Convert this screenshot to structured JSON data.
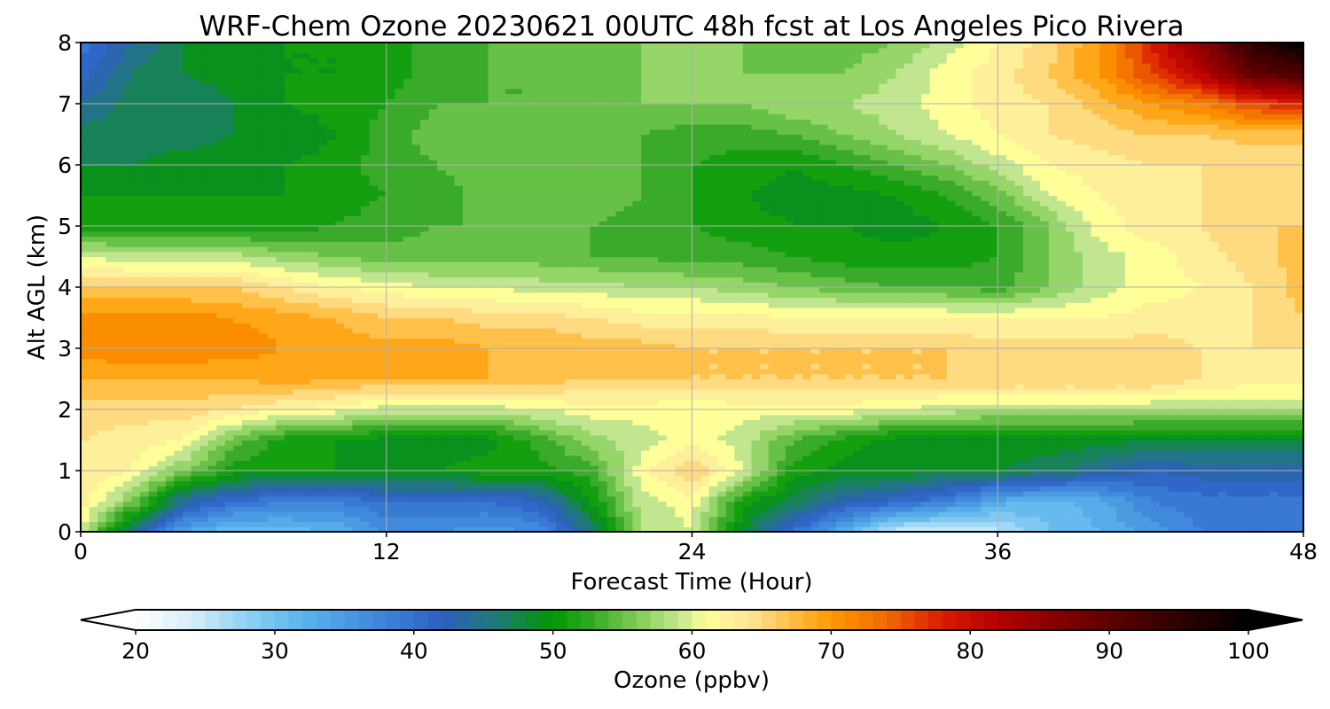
{
  "chart_data": {
    "type": "heatmap",
    "title": "WRF-Chem Ozone  20230621 00UTC 48h fcst at Los Angeles Pico Rivera",
    "xlabel": "Forecast Time (Hour)",
    "ylabel": "Alt AGL (km)",
    "xlim": [
      0,
      48
    ],
    "ylim": [
      0,
      8
    ],
    "xticks": [
      0,
      12,
      24,
      36,
      48
    ],
    "yticks": [
      0,
      1,
      2,
      3,
      4,
      5,
      6,
      7,
      8
    ],
    "xtick_labels": [
      "0",
      "12",
      "24",
      "36",
      "48"
    ],
    "ytick_labels": [
      "0",
      "1",
      "2",
      "3",
      "4",
      "5",
      "6",
      "7",
      "8"
    ],
    "grid": true,
    "x": [
      0,
      2,
      4,
      6,
      8,
      10,
      12,
      14,
      16,
      18,
      20,
      22,
      24,
      26,
      28,
      30,
      32,
      34,
      36,
      38,
      40,
      42,
      44,
      46,
      48
    ],
    "y": [
      0,
      0.5,
      1,
      1.5,
      2,
      2.5,
      3,
      3.5,
      4,
      4.5,
      5,
      5.5,
      6,
      6.5,
      7,
      7.5,
      8
    ],
    "z": [
      [
        60,
        44,
        34,
        30,
        31,
        32,
        36,
        36,
        35,
        36,
        45,
        58,
        60,
        48,
        40,
        32,
        24,
        23,
        25,
        30,
        32,
        35,
        38,
        38,
        38
      ],
      [
        63,
        56,
        44,
        40,
        38,
        38,
        40,
        40,
        40,
        42,
        50,
        59,
        61,
        51,
        47,
        43,
        41,
        38,
        33,
        31,
        33,
        38,
        39,
        39,
        39
      ],
      [
        64,
        62,
        56,
        51,
        50,
        50,
        50,
        50,
        51,
        51,
        53,
        61,
        66,
        60,
        51,
        49,
        49,
        48,
        48,
        47,
        44,
        42,
        43,
        43,
        43
      ],
      [
        64,
        63,
        62,
        55,
        51,
        50,
        49,
        49,
        49,
        53,
        57,
        59,
        61,
        59,
        54,
        51,
        49,
        49,
        49,
        49,
        49,
        48,
        48,
        48,
        48
      ],
      [
        65,
        65,
        65,
        64,
        62,
        61,
        59,
        59,
        59,
        60,
        61,
        61,
        60,
        61,
        61,
        61,
        60,
        59,
        58,
        58,
        58,
        58,
        58,
        58,
        58
      ],
      [
        68,
        68,
        68,
        68,
        69,
        68,
        68,
        68,
        68,
        67,
        66,
        66,
        66,
        66,
        66,
        66,
        66,
        66,
        66,
        66,
        66,
        66,
        64,
        63,
        63
      ],
      [
        71,
        72,
        72,
        71,
        70,
        69,
        69,
        69,
        68,
        68,
        67,
        67,
        66,
        66,
        66,
        66,
        66,
        66,
        65,
        65,
        65,
        65,
        64,
        64,
        64
      ],
      [
        71,
        71,
        71,
        70,
        69,
        68,
        66,
        66,
        65,
        65,
        64,
        63,
        63,
        63,
        62,
        62,
        62,
        62,
        62,
        62,
        62,
        63,
        63,
        64,
        66
      ],
      [
        66,
        66,
        66,
        66,
        64,
        62,
        61,
        60,
        60,
        59,
        59,
        58,
        58,
        57,
        56,
        55,
        54,
        54,
        53,
        56,
        59,
        61,
        62,
        64,
        67
      ],
      [
        60,
        59,
        59,
        59,
        57,
        56,
        55,
        55,
        55,
        55,
        54,
        54,
        53,
        53,
        52,
        51,
        51,
        51,
        52,
        56,
        59,
        61,
        63,
        65,
        67
      ],
      [
        51,
        51,
        51,
        51,
        51,
        52,
        53,
        54,
        54,
        54,
        54,
        53,
        52,
        51,
        50,
        50,
        49,
        50,
        52,
        56,
        61,
        63,
        64,
        66,
        66
      ],
      [
        50,
        50,
        50,
        50,
        50,
        51,
        52,
        53,
        55,
        55,
        55,
        54,
        52,
        50,
        49,
        49,
        50,
        52,
        55,
        60,
        62,
        63,
        64,
        65,
        65
      ],
      [
        48,
        48,
        49,
        49,
        50,
        51,
        53,
        54,
        55,
        55,
        55,
        54,
        52,
        51,
        50,
        52,
        54,
        56,
        59,
        62,
        63,
        64,
        64,
        64,
        64
      ],
      [
        47,
        47,
        47,
        48,
        48,
        50,
        53,
        55,
        55,
        55,
        54,
        54,
        53,
        53,
        54,
        56,
        58,
        60,
        62,
        64,
        65,
        66,
        66,
        67,
        67
      ],
      [
        44,
        47,
        46,
        48,
        50,
        51,
        52,
        54,
        54,
        54,
        54,
        56,
        56,
        56,
        58,
        58,
        59,
        61,
        63,
        64,
        67,
        70,
        72,
        76,
        78
      ],
      [
        41,
        46,
        48,
        49,
        50,
        50,
        51,
        53,
        54,
        54,
        55,
        56,
        57,
        56,
        56,
        56,
        58,
        61,
        63,
        66,
        70,
        76,
        82,
        90,
        92
      ],
      [
        39,
        44,
        48,
        49,
        50,
        50,
        51,
        53,
        54,
        55,
        55,
        56,
        56,
        56,
        55,
        55,
        56,
        59,
        62,
        65,
        70,
        78,
        86,
        95,
        100
      ]
    ],
    "colorbar": {
      "label": "Ozone  (ppbv)",
      "min": 20,
      "max": 100,
      "ticks": [
        20,
        30,
        40,
        50,
        60,
        70,
        80,
        90,
        100
      ],
      "tick_labels": [
        "20",
        "30",
        "40",
        "50",
        "60",
        "70",
        "80",
        "90",
        "100"
      ],
      "extend": "both",
      "colors": [
        {
          "value": 20,
          "color": "#ffffff"
        },
        {
          "value": 24,
          "color": "#d6eefa"
        },
        {
          "value": 28,
          "color": "#8fd0f4"
        },
        {
          "value": 32,
          "color": "#5ab4ec"
        },
        {
          "value": 38,
          "color": "#3c82d8"
        },
        {
          "value": 42,
          "color": "#2d5ec2"
        },
        {
          "value": 46,
          "color": "#1f7a74"
        },
        {
          "value": 50,
          "color": "#009900"
        },
        {
          "value": 53,
          "color": "#3aaa2a"
        },
        {
          "value": 56,
          "color": "#7fcc55"
        },
        {
          "value": 59,
          "color": "#c2e690"
        },
        {
          "value": 61,
          "color": "#ffff99"
        },
        {
          "value": 64,
          "color": "#fde79c"
        },
        {
          "value": 67,
          "color": "#ffc14a"
        },
        {
          "value": 70,
          "color": "#ff9900"
        },
        {
          "value": 74,
          "color": "#f06a00"
        },
        {
          "value": 78,
          "color": "#d81c00"
        },
        {
          "value": 82,
          "color": "#b40000"
        },
        {
          "value": 90,
          "color": "#5e0000"
        },
        {
          "value": 100,
          "color": "#000000"
        }
      ]
    }
  }
}
